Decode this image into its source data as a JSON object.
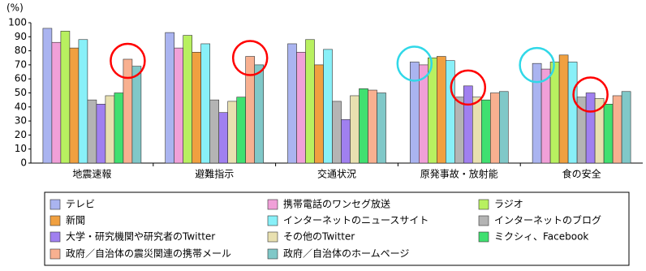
{
  "chart_data": {
    "type": "bar",
    "y_unit_label": "(%)",
    "categories": [
      "地震速報",
      "避難指示",
      "交通状況",
      "原発事故・放射能",
      "食の安全"
    ],
    "ylim": [
      0,
      100
    ],
    "yticks": [
      0,
      10,
      20,
      30,
      40,
      50,
      60,
      70,
      80,
      90,
      100
    ],
    "series": [
      {
        "name": "テレビ",
        "color": "#aab4f0",
        "values": [
          96,
          93,
          85,
          72,
          71
        ]
      },
      {
        "name": "携帯電話のワンセグ放送",
        "color": "#f0a0d8",
        "values": [
          86,
          82,
          79,
          70,
          67
        ]
      },
      {
        "name": "ラジオ",
        "color": "#b8f060",
        "values": [
          94,
          91,
          88,
          75,
          72
        ]
      },
      {
        "name": "新聞",
        "color": "#f0a040",
        "values": [
          82,
          79,
          70,
          76,
          77
        ]
      },
      {
        "name": "インターネットのニュースサイト",
        "color": "#88f0f8",
        "values": [
          88,
          85,
          81,
          73,
          72
        ]
      },
      {
        "name": "インターネットのブログ",
        "color": "#b4b4b4",
        "values": [
          45,
          45,
          44,
          47,
          47
        ]
      },
      {
        "name": "大学・研究機関や研究者のTwitter",
        "color": "#a080f0",
        "values": [
          42,
          36,
          31,
          55,
          50
        ]
      },
      {
        "name": "その他のTwitter",
        "color": "#e8e0b0",
        "values": [
          48,
          44,
          48,
          47,
          46
        ]
      },
      {
        "name": "ミクシィ、Facebook",
        "color": "#40e070",
        "values": [
          50,
          47,
          53,
          45,
          42
        ]
      },
      {
        "name": "政府／自治体の震災関連の携帯メール",
        "color": "#f8b090",
        "values": [
          74,
          76,
          52,
          50,
          48
        ]
      },
      {
        "name": "政府／自治体のホームページ",
        "color": "#80c8c8",
        "values": [
          69,
          70,
          50,
          51,
          51
        ]
      }
    ]
  }
}
